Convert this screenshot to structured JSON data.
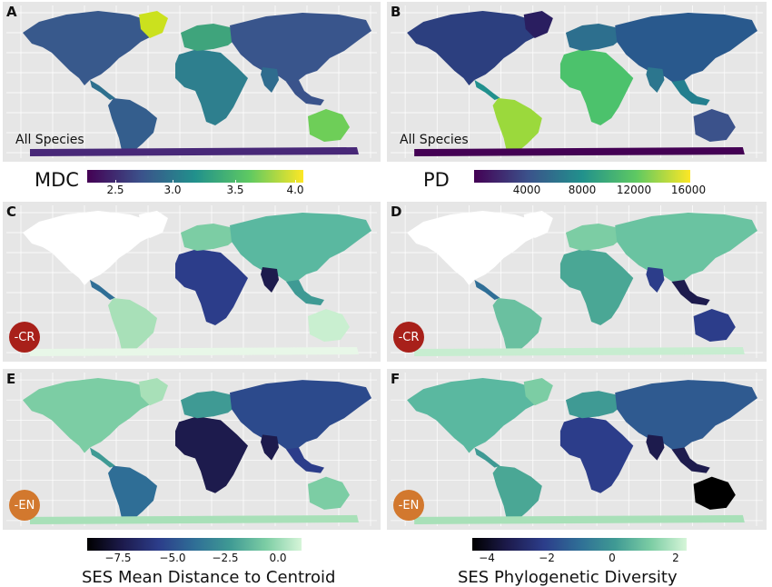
{
  "panels": [
    {
      "letter": "A",
      "note": "All Species",
      "badge": "",
      "scheme": "mdc"
    },
    {
      "letter": "B",
      "note": "All Species",
      "badge": "",
      "scheme": "pd"
    },
    {
      "letter": "C",
      "note": "",
      "badge": "-CR",
      "scheme": "sesC"
    },
    {
      "letter": "D",
      "note": "",
      "badge": "-CR",
      "scheme": "sesD"
    },
    {
      "letter": "E",
      "note": "",
      "badge": "-EN",
      "scheme": "sesE"
    },
    {
      "letter": "F",
      "note": "",
      "badge": "-EN",
      "scheme": "sesF"
    }
  ],
  "legends": {
    "mdc": {
      "title": "MDC",
      "ticks": [
        "2.5",
        "3.0",
        "3.5",
        "4.0"
      ]
    },
    "pd": {
      "title": "PD",
      "ticks": [
        "4000",
        "8000",
        "12000",
        "16000"
      ]
    },
    "ses_mdc": {
      "title": "SES Mean Distance to Centroid",
      "ticks": [
        "−7.5",
        "−5.0",
        "−2.5",
        "0.0"
      ]
    },
    "ses_pd": {
      "title": "SES Phylogenetic Diversity",
      "ticks": [
        "−4",
        "−2",
        "0",
        "2"
      ]
    }
  },
  "colors": {
    "panel_bg": "#e6e6e6",
    "cr_badge": "#a8201a",
    "en_badge": "#d2782e",
    "viridis": [
      "#440154",
      "#3b528b",
      "#21918c",
      "#5ec962",
      "#fde725"
    ],
    "ses": [
      "#000000",
      "#1d1b4d",
      "#2c3d8a",
      "#2f6e96",
      "#3f9a94",
      "#7ccda4",
      "#d6f5d8"
    ]
  }
}
